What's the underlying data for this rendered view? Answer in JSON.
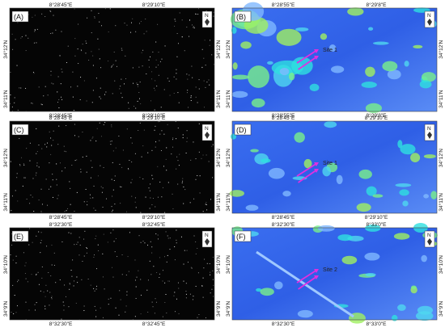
{
  "panels": [
    {
      "label": "(A)",
      "north": "N",
      "top_ticks": [
        "8°28'45\"E",
        "8°29'10\"E"
      ],
      "bottom_ticks": [
        "8°28'45\"E",
        "8°29'10\"E"
      ],
      "left_ticks": [
        "34°12'N",
        "34°11'N"
      ],
      "right_ticks": [
        "34°12'N",
        "34°11'N"
      ]
    },
    {
      "label": "(B)",
      "north": "N",
      "top_ticks": [
        "8°28'55\"E",
        "8°29'8\"E"
      ],
      "bottom_ticks": [
        "8°28'55\"E",
        "8°29'8\"E"
      ],
      "left_ticks": [
        "34°12'N",
        "34°11'N"
      ],
      "right_ticks": [
        "34°12'N",
        "34°11'N"
      ],
      "site": "Site 1"
    },
    {
      "label": "(C)",
      "north": "N",
      "top_ticks": [
        "8°28'45\"E",
        "8°29'10\"E"
      ],
      "bottom_ticks": [
        "8°28'45\"E",
        "8°29'10\"E"
      ],
      "left_ticks": [
        "34°12'N",
        "34°11'N"
      ],
      "right_ticks": [
        "34°12'N",
        "34°11'N"
      ]
    },
    {
      "label": "(D)",
      "north": "N",
      "top_ticks": [
        "8°28'45\"E",
        "8°29'10\"E"
      ],
      "bottom_ticks": [
        "8°28'45\"E",
        "8°29'10\"E"
      ],
      "left_ticks": [
        "34°12'N",
        "34°11'N"
      ],
      "right_ticks": [
        "34°12'N",
        "34°11'N"
      ],
      "site": "Site 1"
    },
    {
      "label": "(E)",
      "north": "N",
      "top_ticks": [
        "8°32'30\"E",
        "8°32'45\"E"
      ],
      "bottom_ticks": [
        "8°32'30\"E",
        "8°32'45\"E"
      ],
      "left_ticks": [
        "34°10'N",
        "34°9'N"
      ],
      "right_ticks": [
        "34°10'N",
        "34°9'N"
      ]
    },
    {
      "label": "(F)",
      "north": "N",
      "top_ticks": [
        "8°32'30\"E",
        "8°33'0\"E"
      ],
      "bottom_ticks": [
        "8°32'30\"E",
        "8°33'0\"E"
      ],
      "left_ticks": [
        "34°10'N",
        "34°9'N"
      ],
      "right_ticks": [
        "34°10'N",
        "34°9'N"
      ],
      "site": "Site 2"
    }
  ]
}
